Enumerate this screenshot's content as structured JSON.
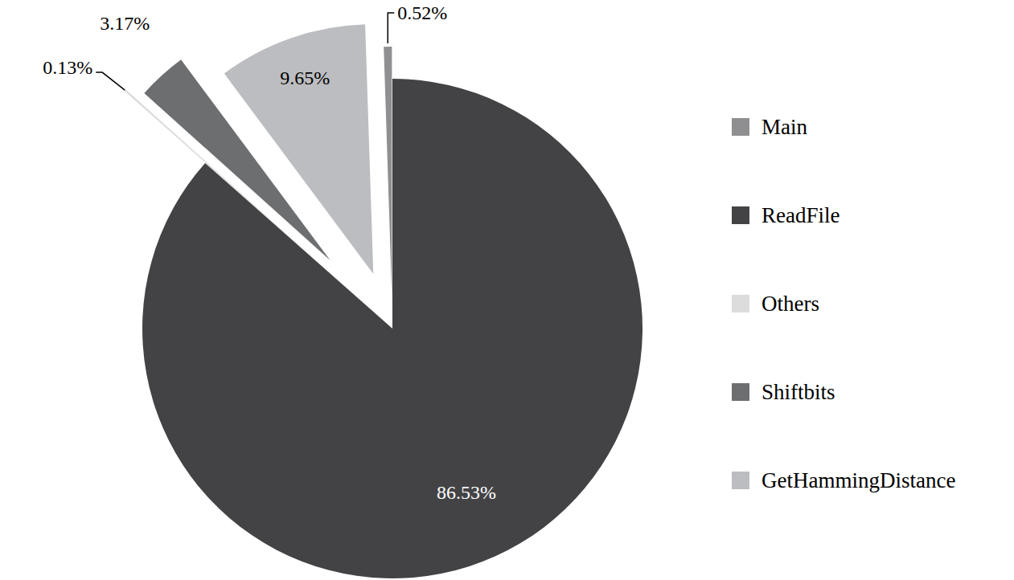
{
  "chart_data": {
    "type": "pie",
    "categories": [
      "Main",
      "ReadFile",
      "Others",
      "Shiftbits",
      "GetHammingDistance"
    ],
    "values": [
      0.52,
      86.53,
      0.13,
      3.17,
      9.65
    ],
    "value_labels": [
      "0.52%",
      "86.53%",
      "0.13%",
      "3.17%",
      "9.65%"
    ],
    "colors": [
      "#8f8f91",
      "#434345",
      "#dcdcdd",
      "#6d6e70",
      "#bcbdc0"
    ],
    "data_labels": true,
    "legend": "right"
  }
}
